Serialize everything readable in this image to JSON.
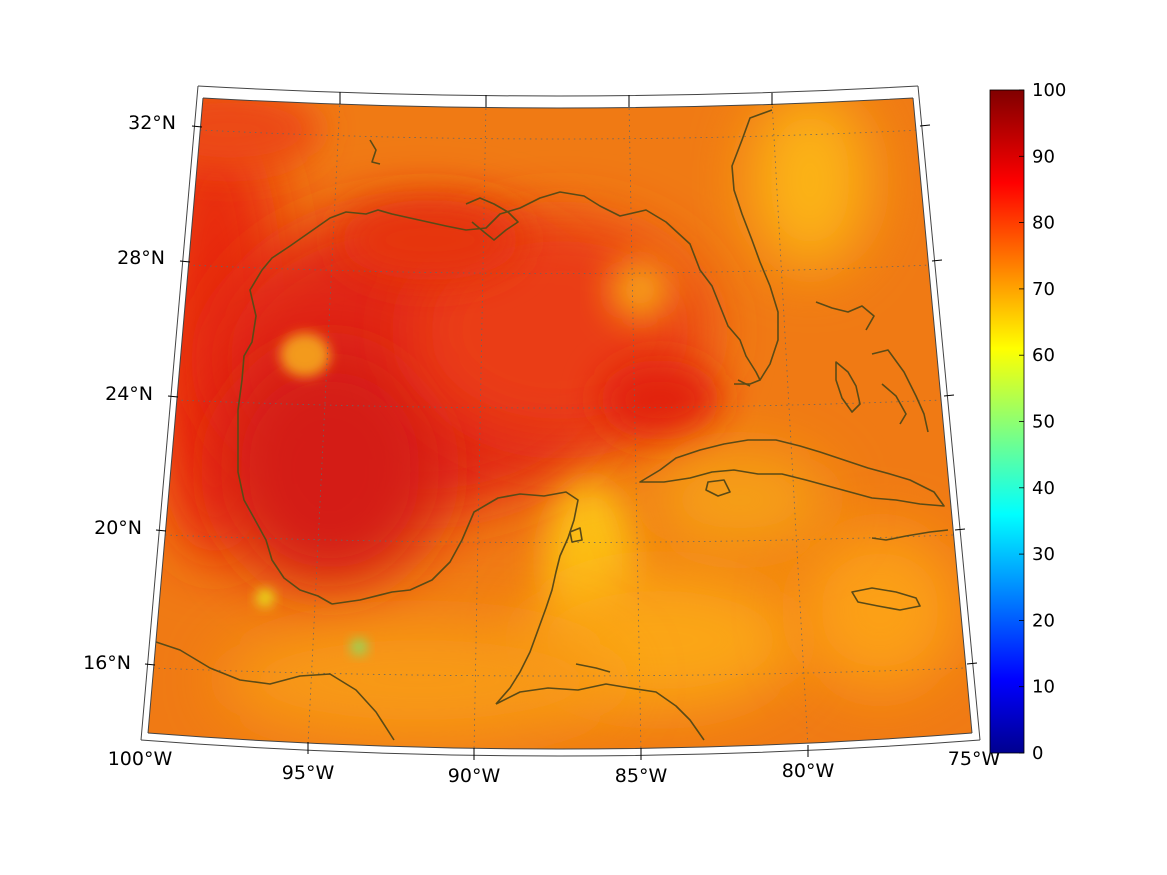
{
  "map": {
    "lat_labels": [
      "32°N",
      "28°N",
      "24°N",
      "20°N",
      "16°N"
    ],
    "lon_labels": [
      "100°W",
      "95°W",
      "90°W",
      "85°W",
      "80°W",
      "75°W"
    ],
    "colorbar": {
      "min": 0,
      "max": 100,
      "ticks": [
        "0",
        "10",
        "20",
        "30",
        "40",
        "50",
        "60",
        "70",
        "80",
        "90",
        "100"
      ],
      "colormap": "jet"
    },
    "coastline_color": "#5a4a16"
  }
}
